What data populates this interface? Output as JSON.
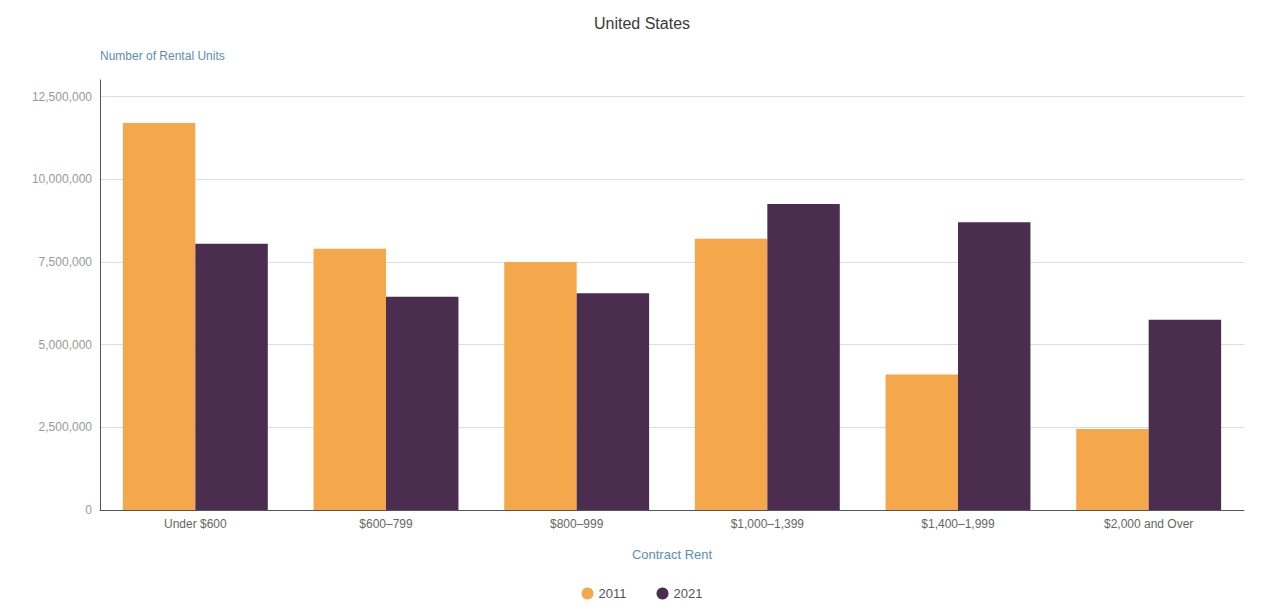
{
  "chart_data": {
    "type": "bar",
    "title": "United States",
    "xlabel": "Contract Rent",
    "ylabel": "Number of Rental Units",
    "categories": [
      "Under $600",
      "$600–799",
      "$800–999",
      "$1,000–1,399",
      "$1,400–1,999",
      "$2,000 and Over"
    ],
    "series": [
      {
        "name": "2011",
        "color": "#F5A84B",
        "values": [
          11700000,
          7900000,
          7500000,
          8200000,
          4100000,
          2450000
        ]
      },
      {
        "name": "2021",
        "color": "#4B2D4F",
        "values": [
          8050000,
          6450000,
          6550000,
          9250000,
          8700000,
          5750000
        ]
      }
    ],
    "ylim": [
      0,
      13000000
    ],
    "yticks": [
      0,
      {
        "value": 2500000,
        "label": "2,500,000"
      },
      {
        "value": 5000000,
        "label": "5,000,000"
      },
      {
        "value": 7500000,
        "label": "7,500,000"
      },
      {
        "value": 10000000,
        "label": "10,000,000"
      },
      {
        "value": 12500000,
        "label": "12,500,000"
      }
    ],
    "grid": true,
    "legend": "bottom"
  }
}
